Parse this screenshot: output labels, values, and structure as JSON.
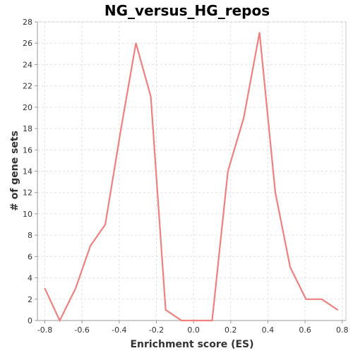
{
  "chart_data": {
    "type": "line",
    "title": "NG_versus_HG_repos",
    "xlabel": "Enrichment score (ES)",
    "ylabel": "# of gene sets",
    "xlim": [
      -0.84,
      0.82
    ],
    "ylim": [
      0,
      28
    ],
    "x_ticks": [
      "-0.8",
      "-0.6",
      "-0.4",
      "-0.2",
      "0.0",
      "0.2",
      "0.4",
      "0.6",
      "0.8"
    ],
    "y_ticks": [
      "0",
      "2",
      "4",
      "6",
      "8",
      "10",
      "12",
      "14",
      "16",
      "18",
      "20",
      "22",
      "24",
      "26",
      "28"
    ],
    "grid": true,
    "series": [
      {
        "color": "#f08080",
        "x": [
          -0.8,
          -0.72,
          -0.635,
          -0.555,
          -0.475,
          -0.39,
          -0.31,
          -0.23,
          -0.15,
          -0.065,
          0.015,
          0.1,
          0.185,
          0.27,
          0.355,
          0.44,
          0.52,
          0.605,
          0.69,
          0.775
        ],
        "y": [
          3,
          0,
          3,
          7,
          9,
          18,
          26,
          21,
          1,
          0,
          0,
          0,
          14,
          19,
          27,
          12,
          5,
          2,
          2,
          1
        ]
      }
    ]
  }
}
